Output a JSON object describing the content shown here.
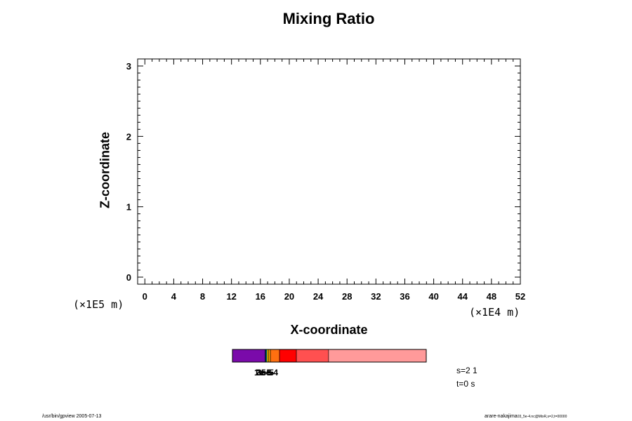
{
  "chart_data": {
    "type": "heatmap",
    "title": "Mixing Ratio",
    "xlabel": "X-coordinate",
    "ylabel": "Z-coordinate",
    "x_scale_label": "(×1E4 m)",
    "y_scale_label": "(×1E5 m)",
    "xlim": [
      -1,
      52
    ],
    "ylim": [
      -0.1,
      3.1
    ],
    "x_ticks": [
      "0",
      "4",
      "8",
      "12",
      "16",
      "20",
      "24",
      "28",
      "32",
      "36",
      "40",
      "44",
      "48",
      "52"
    ],
    "y_ticks": [
      "0",
      "1",
      "2",
      "3"
    ],
    "grid": false,
    "colorbar": {
      "segments": [
        {
          "start": 0,
          "end": 0.168,
          "color": "#7a0aaa"
        },
        {
          "start": 0.168,
          "end": 0.172,
          "color": "#2020c0"
        },
        {
          "start": 0.172,
          "end": 0.178,
          "color": "#00a0a0"
        },
        {
          "start": 0.178,
          "end": 0.186,
          "color": "#f0c000"
        },
        {
          "start": 0.186,
          "end": 0.196,
          "color": "#ffa000"
        },
        {
          "start": 0.196,
          "end": 0.243,
          "color": "#ff7010"
        },
        {
          "start": 0.243,
          "end": 0.33,
          "color": "#ff0000"
        },
        {
          "start": 0.33,
          "end": 0.496,
          "color": "#ff5050"
        },
        {
          "start": 0.496,
          "end": 1.0,
          "color": "#ff9a9a"
        }
      ],
      "labels": [
        "1e-5",
        "2e-5",
        "3e-5",
        "5e-4"
      ]
    },
    "info_s": "s=2 1",
    "info_t": "t=0 s"
  },
  "footer": {
    "left": "/usr/bin/gpview 2005-07-13",
    "right_main": "arare-nakajima",
    "right_small": "03_5e-4.nc@MixR,s=2,t=00000"
  }
}
